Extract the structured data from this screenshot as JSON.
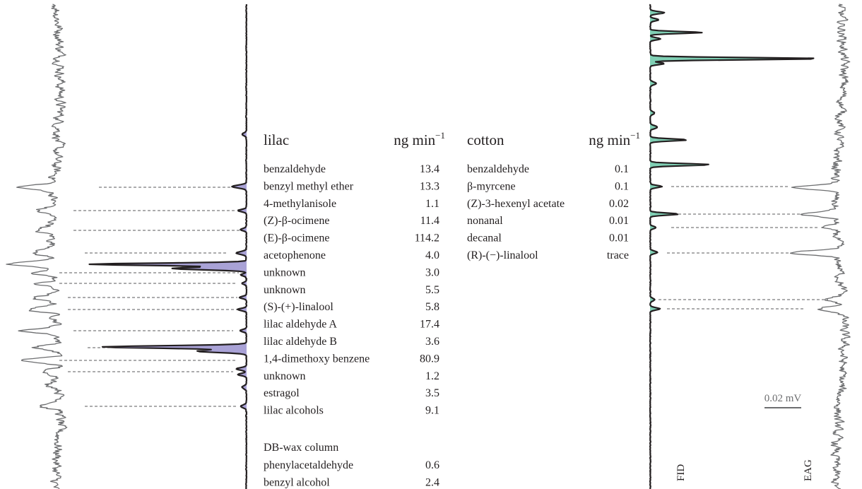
{
  "chart_data": {
    "type": "table",
    "panels": [
      {
        "name": "lilac",
        "unit_label": "ng min",
        "unit_exponent": "−1",
        "compounds": [
          {
            "name": "benzaldehyde",
            "value": "13.4"
          },
          {
            "name": "benzyl methyl ether",
            "value": "13.3"
          },
          {
            "name": "4-methylanisole",
            "value": "1.1"
          },
          {
            "name": "(Z)-β-ocimene",
            "value": "11.4"
          },
          {
            "name": "(E)-β-ocimene",
            "value": "114.2"
          },
          {
            "name": "acetophenone",
            "value": "4.0"
          },
          {
            "name": "unknown",
            "value": "3.0"
          },
          {
            "name": "unknown",
            "value": "5.5"
          },
          {
            "name": "(S)-(+)-linalool",
            "value": "5.8"
          },
          {
            "name": "lilac aldehyde A",
            "value": "17.4"
          },
          {
            "name": "lilac aldehyde B",
            "value": "3.6"
          },
          {
            "name": "1,4-dimethoxy benzene",
            "value": "80.9"
          },
          {
            "name": "unknown",
            "value": "1.2"
          },
          {
            "name": "estragol",
            "value": "3.5"
          },
          {
            "name": "lilac alcohols",
            "value": "9.1"
          }
        ],
        "extra_heading": "DB-wax column",
        "extra_compounds": [
          {
            "name": "phenylacetaldehyde",
            "value": "0.6"
          },
          {
            "name": "benzyl alcohol",
            "value": "2.4"
          }
        ]
      },
      {
        "name": "cotton",
        "unit_label": "ng min",
        "unit_exponent": "−1",
        "compounds": [
          {
            "name": "benzaldehyde",
            "value": "0.1"
          },
          {
            "name": "β-myrcene",
            "value": "0.1"
          },
          {
            "name": "(Z)-3-hexenyl acetate",
            "value": "0.02"
          },
          {
            "name": "nonanal",
            "value": "0.01"
          },
          {
            "name": "decanal",
            "value": "0.01"
          },
          {
            "name": "(R)-(−)-linalool",
            "value": "trace"
          }
        ]
      }
    ],
    "trace_labels": {
      "fid": "FID",
      "eag": "EAG"
    },
    "scale_bar": "0.02 mV",
    "colors": {
      "lilac_fill": "#a9a2d6",
      "cotton_fill": "#7fcfb4",
      "fid_line": "#231f20",
      "eag_line": "#6d6e70",
      "link_line": "#58595b"
    }
  }
}
